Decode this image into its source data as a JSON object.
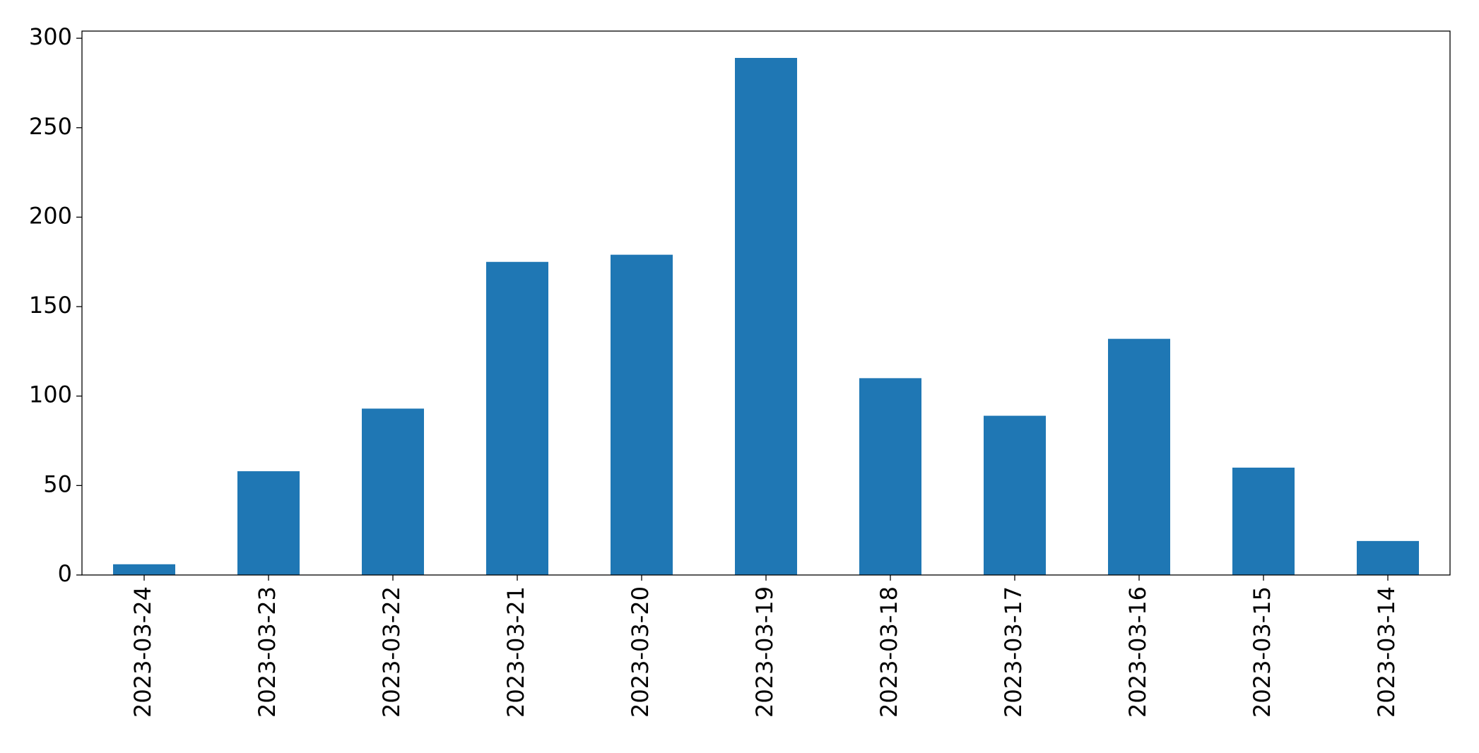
{
  "chart_data": {
    "type": "bar",
    "categories": [
      "2023-03-24",
      "2023-03-23",
      "2023-03-22",
      "2023-03-21",
      "2023-03-20",
      "2023-03-19",
      "2023-03-18",
      "2023-03-17",
      "2023-03-16",
      "2023-03-15",
      "2023-03-14"
    ],
    "values": [
      6,
      58,
      93,
      175,
      179,
      289,
      110,
      89,
      132,
      60,
      19
    ],
    "color": "#1f77b4",
    "ylim": [
      0,
      304
    ],
    "yticks": [
      0,
      50,
      100,
      150,
      200,
      250,
      300
    ],
    "grid": false
  }
}
